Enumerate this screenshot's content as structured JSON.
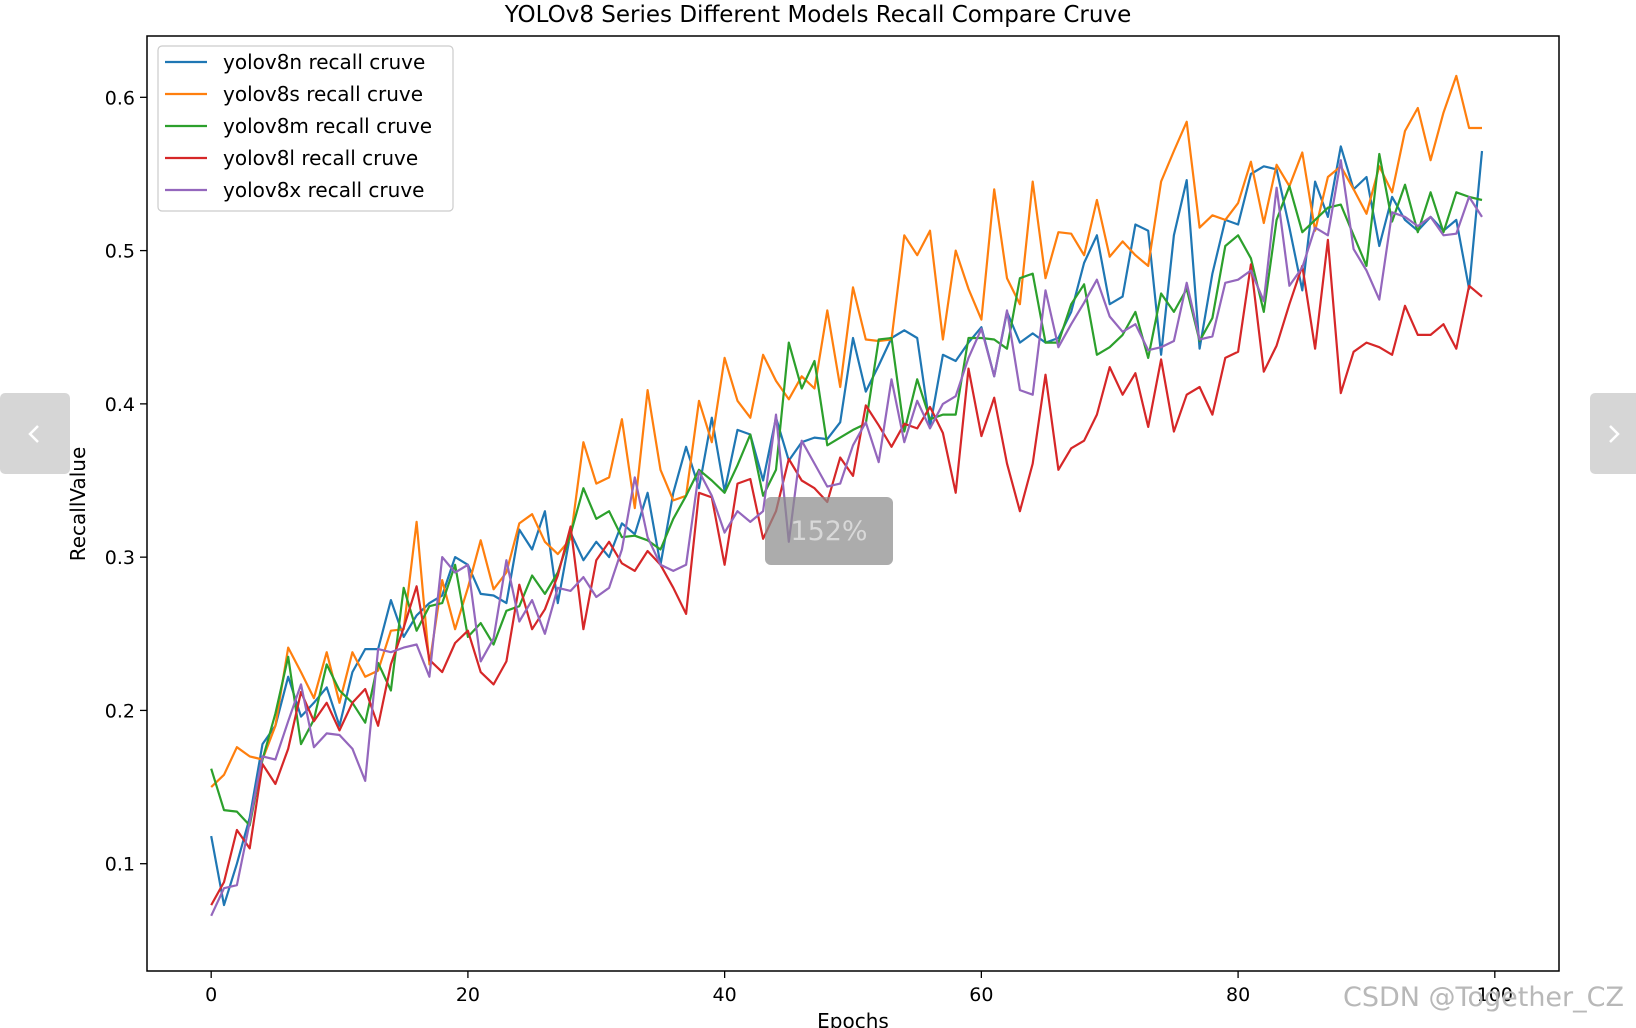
{
  "viewer": {
    "zoom_label": "152%",
    "watermark": "CSDN @Together_CZ",
    "prev_icon": "chevron-left-icon",
    "next_icon": "chevron-right-icon"
  },
  "chart_data": {
    "type": "line",
    "title": "YOLOv8 Series Different Models Recall Compare Cruve",
    "xlabel": "Epochs",
    "ylabel": "RecallValue",
    "xlim": [
      -5,
      105
    ],
    "ylim": [
      0.03,
      0.64
    ],
    "xticks": [
      0,
      20,
      40,
      60,
      80,
      100
    ],
    "yticks": [
      0.1,
      0.2,
      0.3,
      0.4,
      0.5,
      0.6
    ],
    "grid": false,
    "legend_position": "top-left",
    "x_start": 0,
    "x_step": 1,
    "series": [
      {
        "name": "yolov8n recall cruve",
        "color": "#1f77b4",
        "values": [
          0.118,
          0.073,
          0.1,
          0.13,
          0.178,
          0.19,
          0.222,
          0.196,
          0.205,
          0.215,
          0.19,
          0.225,
          0.24,
          0.24,
          0.272,
          0.248,
          0.262,
          0.27,
          0.275,
          0.3,
          0.295,
          0.276,
          0.275,
          0.27,
          0.318,
          0.305,
          0.33,
          0.27,
          0.316,
          0.298,
          0.31,
          0.3,
          0.322,
          0.315,
          0.342,
          0.295,
          0.342,
          0.372,
          0.345,
          0.391,
          0.343,
          0.383,
          0.38,
          0.35,
          0.391,
          0.363,
          0.375,
          0.378,
          0.377,
          0.388,
          0.443,
          0.408,
          0.425,
          0.443,
          0.448,
          0.443,
          0.385,
          0.432,
          0.428,
          0.44,
          0.45,
          0.418,
          0.46,
          0.44,
          0.446,
          0.44,
          0.443,
          0.46,
          0.492,
          0.51,
          0.465,
          0.47,
          0.517,
          0.513,
          0.432,
          0.51,
          0.546,
          0.436,
          0.485,
          0.52,
          0.517,
          0.55,
          0.555,
          0.553,
          0.515,
          0.474,
          0.545,
          0.522,
          0.568,
          0.54,
          0.548,
          0.503,
          0.535,
          0.52,
          0.513,
          0.522,
          0.513,
          0.52,
          0.475,
          0.565
        ]
      },
      {
        "name": "yolov8s recall cruve",
        "color": "#ff7f0e",
        "values": [
          0.15,
          0.158,
          0.176,
          0.17,
          0.168,
          0.19,
          0.241,
          0.225,
          0.208,
          0.238,
          0.205,
          0.238,
          0.222,
          0.226,
          0.252,
          0.253,
          0.323,
          0.23,
          0.285,
          0.253,
          0.28,
          0.311,
          0.279,
          0.29,
          0.322,
          0.328,
          0.31,
          0.302,
          0.312,
          0.375,
          0.348,
          0.352,
          0.39,
          0.332,
          0.409,
          0.357,
          0.337,
          0.34,
          0.402,
          0.375,
          0.43,
          0.402,
          0.391,
          0.432,
          0.415,
          0.403,
          0.418,
          0.41,
          0.461,
          0.411,
          0.476,
          0.442,
          0.441,
          0.442,
          0.51,
          0.497,
          0.513,
          0.442,
          0.5,
          0.475,
          0.455,
          0.54,
          0.482,
          0.465,
          0.545,
          0.482,
          0.512,
          0.511,
          0.497,
          0.533,
          0.496,
          0.506,
          0.497,
          0.49,
          0.545,
          0.565,
          0.584,
          0.515,
          0.523,
          0.52,
          0.531,
          0.558,
          0.518,
          0.556,
          0.542,
          0.564,
          0.513,
          0.548,
          0.555,
          0.54,
          0.524,
          0.555,
          0.538,
          0.578,
          0.593,
          0.559,
          0.59,
          0.614,
          0.58,
          0.58
        ]
      },
      {
        "name": "yolov8m recall cruve",
        "color": "#2ca02c",
        "values": [
          0.162,
          0.135,
          0.134,
          0.125,
          0.168,
          0.198,
          0.235,
          0.178,
          0.194,
          0.23,
          0.213,
          0.205,
          0.192,
          0.231,
          0.213,
          0.28,
          0.252,
          0.268,
          0.27,
          0.295,
          0.248,
          0.257,
          0.243,
          0.265,
          0.268,
          0.288,
          0.276,
          0.29,
          0.315,
          0.345,
          0.325,
          0.33,
          0.313,
          0.314,
          0.311,
          0.305,
          0.325,
          0.34,
          0.357,
          0.35,
          0.342,
          0.36,
          0.38,
          0.34,
          0.357,
          0.44,
          0.41,
          0.428,
          0.373,
          0.378,
          0.383,
          0.387,
          0.442,
          0.443,
          0.382,
          0.416,
          0.39,
          0.393,
          0.393,
          0.443,
          0.443,
          0.442,
          0.436,
          0.482,
          0.485,
          0.44,
          0.44,
          0.465,
          0.478,
          0.432,
          0.437,
          0.445,
          0.46,
          0.43,
          0.472,
          0.46,
          0.475,
          0.441,
          0.456,
          0.503,
          0.51,
          0.495,
          0.46,
          0.52,
          0.542,
          0.512,
          0.52,
          0.528,
          0.53,
          0.51,
          0.49,
          0.563,
          0.519,
          0.543,
          0.512,
          0.538,
          0.512,
          0.538,
          0.535,
          0.533
        ]
      },
      {
        "name": "yolov8l recall cruve",
        "color": "#d62728",
        "values": [
          0.073,
          0.088,
          0.122,
          0.11,
          0.165,
          0.152,
          0.175,
          0.212,
          0.193,
          0.205,
          0.187,
          0.205,
          0.214,
          0.19,
          0.23,
          0.254,
          0.281,
          0.233,
          0.225,
          0.244,
          0.252,
          0.225,
          0.217,
          0.232,
          0.282,
          0.253,
          0.266,
          0.288,
          0.32,
          0.253,
          0.298,
          0.31,
          0.296,
          0.291,
          0.304,
          0.295,
          0.28,
          0.263,
          0.342,
          0.339,
          0.295,
          0.348,
          0.351,
          0.312,
          0.33,
          0.364,
          0.35,
          0.345,
          0.336,
          0.365,
          0.353,
          0.399,
          0.386,
          0.372,
          0.387,
          0.384,
          0.398,
          0.381,
          0.342,
          0.423,
          0.379,
          0.404,
          0.361,
          0.33,
          0.361,
          0.419,
          0.357,
          0.371,
          0.376,
          0.393,
          0.424,
          0.406,
          0.42,
          0.385,
          0.429,
          0.382,
          0.406,
          0.411,
          0.393,
          0.43,
          0.434,
          0.491,
          0.421,
          0.438,
          0.465,
          0.49,
          0.436,
          0.507,
          0.407,
          0.434,
          0.44,
          0.437,
          0.432,
          0.464,
          0.445,
          0.445,
          0.452,
          0.436,
          0.477,
          0.47
        ]
      },
      {
        "name": "yolov8x recall cruve",
        "color": "#9467bd",
        "values": [
          0.066,
          0.084,
          0.086,
          0.127,
          0.17,
          0.168,
          0.193,
          0.217,
          0.176,
          0.185,
          0.184,
          0.175,
          0.154,
          0.24,
          0.238,
          0.241,
          0.243,
          0.222,
          0.3,
          0.29,
          0.295,
          0.232,
          0.247,
          0.298,
          0.258,
          0.272,
          0.25,
          0.28,
          0.278,
          0.287,
          0.274,
          0.28,
          0.305,
          0.352,
          0.313,
          0.295,
          0.291,
          0.295,
          0.356,
          0.34,
          0.316,
          0.33,
          0.323,
          0.33,
          0.393,
          0.31,
          0.376,
          0.361,
          0.346,
          0.348,
          0.373,
          0.388,
          0.362,
          0.416,
          0.375,
          0.402,
          0.384,
          0.4,
          0.405,
          0.43,
          0.449,
          0.418,
          0.461,
          0.409,
          0.406,
          0.474,
          0.437,
          0.452,
          0.466,
          0.481,
          0.457,
          0.447,
          0.452,
          0.435,
          0.437,
          0.441,
          0.479,
          0.442,
          0.444,
          0.479,
          0.481,
          0.487,
          0.467,
          0.541,
          0.477,
          0.489,
          0.515,
          0.51,
          0.559,
          0.501,
          0.487,
          0.468,
          0.525,
          0.522,
          0.516,
          0.522,
          0.51,
          0.511,
          0.535,
          0.522
        ]
      }
    ]
  }
}
